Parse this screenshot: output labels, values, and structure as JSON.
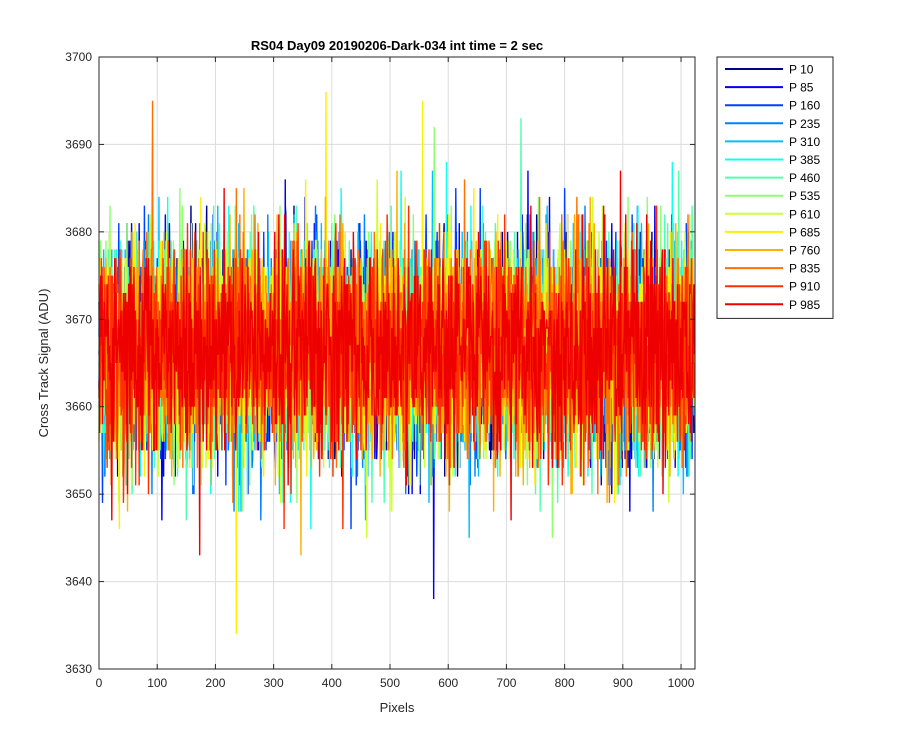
{
  "chart_data": {
    "type": "line",
    "title": "RS04 Day09 20190206-Dark-034 int time = 2 sec",
    "xlabel": "Pixels",
    "ylabel": "Cross Track Signal (ADU)",
    "xlim": [
      0,
      1024
    ],
    "ylim": [
      3630,
      3700
    ],
    "xticks": [
      0,
      100,
      200,
      300,
      400,
      500,
      600,
      700,
      800,
      900,
      1000
    ],
    "yticks": [
      3630,
      3640,
      3650,
      3660,
      3670,
      3680,
      3690,
      3700
    ],
    "grid": true,
    "legend_position": "outside-right-top",
    "num_points": 1024,
    "series": [
      {
        "name": "P 10",
        "color": "#00008f",
        "mean": 3666.5,
        "std": 6.2
      },
      {
        "name": "P 85",
        "color": "#0000ef",
        "mean": 3666.5,
        "std": 6.2
      },
      {
        "name": "P 160",
        "color": "#0040ff",
        "mean": 3666.5,
        "std": 6.2
      },
      {
        "name": "P 235",
        "color": "#0080ff",
        "mean": 3666.5,
        "std": 6.2
      },
      {
        "name": "P 310",
        "color": "#00bfff",
        "mean": 3666.5,
        "std": 6.2
      },
      {
        "name": "P 385",
        "color": "#10ffef",
        "mean": 3666.5,
        "std": 6.2
      },
      {
        "name": "P 460",
        "color": "#50ffaf",
        "mean": 3666.5,
        "std": 6.2
      },
      {
        "name": "P 535",
        "color": "#8fff70",
        "mean": 3666.5,
        "std": 6.2
      },
      {
        "name": "P 610",
        "color": "#cfff30",
        "mean": 3666.5,
        "std": 6.2
      },
      {
        "name": "P 685",
        "color": "#ffef00",
        "mean": 3666.5,
        "std": 6.2
      },
      {
        "name": "P 760",
        "color": "#ffaf00",
        "mean": 3666.5,
        "std": 6.2
      },
      {
        "name": "P 835",
        "color": "#ff7000",
        "mean": 3666.5,
        "std": 6.2
      },
      {
        "name": "P 910",
        "color": "#ff3000",
        "mean": 3666.5,
        "std": 6.2
      },
      {
        "name": "P 985",
        "color": "#ef0000",
        "mean": 3666.5,
        "std": 6.2
      }
    ],
    "annotations": [
      {
        "series": "P 685",
        "x": 236,
        "y": 3634
      },
      {
        "series": "P 85",
        "x": 575,
        "y": 3638
      },
      {
        "series": "P 685",
        "x": 390,
        "y": 3696
      },
      {
        "series": "P 835",
        "x": 92,
        "y": 3695
      },
      {
        "series": "P 685",
        "x": 556,
        "y": 3695
      },
      {
        "series": "P 460",
        "x": 725,
        "y": 3693
      }
    ]
  }
}
